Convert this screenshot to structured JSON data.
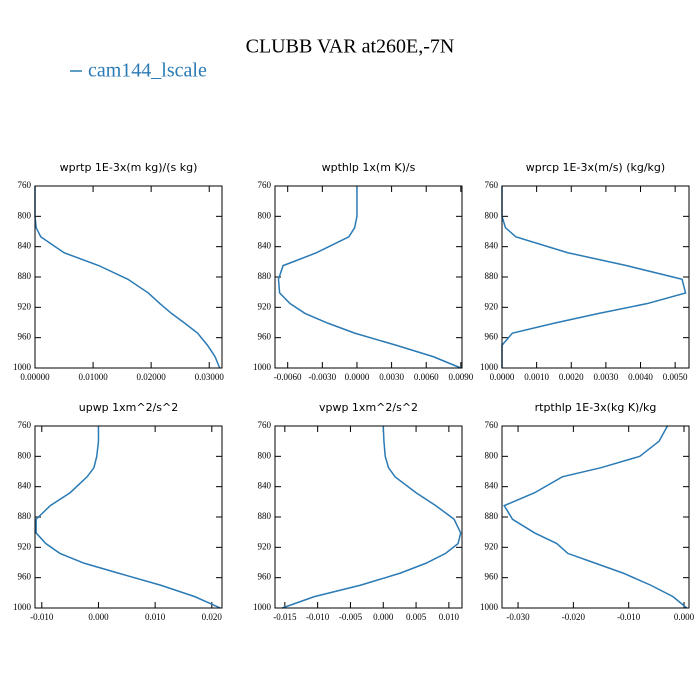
{
  "title": "CLUBB VAR at260E,-7N",
  "legend": {
    "label": "cam144_lscale",
    "color": "#2a7ab5"
  },
  "chart_data": [
    {
      "type": "line",
      "title": "wprtp  1E-3x(m kg)/(s kg)",
      "y": [
        760,
        780,
        800,
        815,
        827,
        848,
        865,
        883,
        901,
        915,
        928,
        941,
        954,
        970,
        985,
        1000
      ],
      "values": [
        0,
        0,
        0,
        0.0002,
        0.001,
        0.005,
        0.011,
        0.016,
        0.0195,
        0.0215,
        0.0235,
        0.0258,
        0.028,
        0.0297,
        0.031,
        0.0318
      ],
      "xlim": [
        0,
        0.0322
      ],
      "ylim": [
        760,
        1000
      ],
      "y_reversed": true,
      "xticks": [
        {
          "value": 0,
          "label": "0.00000"
        },
        {
          "value": 0.01,
          "label": "0.01000"
        },
        {
          "value": 0.02,
          "label": "0.02000"
        },
        {
          "value": 0.03,
          "label": "0.03000"
        }
      ],
      "yticks": [
        760,
        800,
        840,
        880,
        920,
        960,
        1000
      ]
    },
    {
      "type": "line",
      "title": "wpthlp  1x(m K)/s",
      "y": [
        760,
        780,
        800,
        815,
        827,
        848,
        865,
        883,
        901,
        915,
        928,
        941,
        954,
        970,
        985,
        1000
      ],
      "values": [
        0,
        0,
        0,
        -0.0002,
        -0.0007,
        -0.0035,
        -0.0064,
        -0.0068,
        -0.0067,
        -0.0058,
        -0.0045,
        -0.0025,
        -0.0002,
        0.0034,
        0.0066,
        0.009
      ],
      "xlim": [
        -0.0071,
        0.0091
      ],
      "ylim": [
        760,
        1000
      ],
      "y_reversed": true,
      "xticks": [
        {
          "value": -0.006,
          "label": "-0.0060"
        },
        {
          "value": -0.003,
          "label": "-0.0030"
        },
        {
          "value": 0,
          "label": "0.0000"
        },
        {
          "value": 0.003,
          "label": "0.0030"
        },
        {
          "value": 0.006,
          "label": "0.0060"
        },
        {
          "value": 0.009,
          "label": "0.0090"
        }
      ],
      "yticks": [
        760,
        800,
        840,
        880,
        920,
        960,
        1000
      ]
    },
    {
      "type": "line",
      "title": "wprcp  1E-3x(m/s) (kg/kg)",
      "y": [
        760,
        780,
        800,
        815,
        827,
        848,
        865,
        883,
        901,
        915,
        928,
        941,
        954,
        970,
        985,
        1000
      ],
      "values": [
        0,
        0,
        0,
        0.0001,
        0.0004,
        0.0019,
        0.0036,
        0.0052,
        0.0053,
        0.0042,
        0.0028,
        0.0015,
        0.0003,
        0,
        0,
        0
      ],
      "xlim": [
        0,
        0.0054
      ],
      "ylim": [
        760,
        1000
      ],
      "y_reversed": true,
      "xticks": [
        {
          "value": 0,
          "label": "0.0000"
        },
        {
          "value": 0.001,
          "label": "0.0010"
        },
        {
          "value": 0.002,
          "label": "0.0020"
        },
        {
          "value": 0.003,
          "label": "0.0030"
        },
        {
          "value": 0.004,
          "label": "0.0040"
        },
        {
          "value": 0.005,
          "label": "0.0050"
        }
      ],
      "yticks": [
        760,
        800,
        840,
        880,
        920,
        960,
        1000
      ]
    },
    {
      "type": "line",
      "title": "upwp  1xm^2/s^2",
      "y": [
        760,
        780,
        800,
        815,
        827,
        848,
        865,
        883,
        901,
        915,
        928,
        941,
        954,
        970,
        985,
        1000
      ],
      "values": [
        0,
        0,
        -0.0003,
        -0.0008,
        -0.002,
        -0.005,
        -0.0085,
        -0.011,
        -0.011,
        -0.0093,
        -0.0068,
        -0.0025,
        0.0035,
        0.011,
        0.017,
        0.0215
      ],
      "xlim": [
        -0.0112,
        0.0218
      ],
      "ylim": [
        760,
        1000
      ],
      "y_reversed": true,
      "xticks": [
        {
          "value": -0.01,
          "label": "-0.010"
        },
        {
          "value": 0,
          "label": "0.000"
        },
        {
          "value": 0.01,
          "label": "0.010"
        },
        {
          "value": 0.02,
          "label": "0.020"
        }
      ],
      "yticks": [
        760,
        800,
        840,
        880,
        920,
        960,
        1000
      ]
    },
    {
      "type": "line",
      "title": "vpwp  1xm^2/s^2",
      "y": [
        760,
        780,
        800,
        815,
        827,
        848,
        865,
        883,
        901,
        915,
        928,
        941,
        954,
        970,
        985,
        1000
      ],
      "values": [
        0,
        0.0001,
        0.0003,
        0.0008,
        0.0018,
        0.005,
        0.008,
        0.0108,
        0.0118,
        0.0114,
        0.0095,
        0.0065,
        0.0026,
        -0.0035,
        -0.0105,
        -0.0154
      ],
      "xlim": [
        -0.0165,
        0.012
      ],
      "ylim": [
        760,
        1000
      ],
      "y_reversed": true,
      "xticks": [
        {
          "value": -0.015,
          "label": "-0.015"
        },
        {
          "value": -0.01,
          "label": "-0.010"
        },
        {
          "value": -0.005,
          "label": "-0.005"
        },
        {
          "value": 0,
          "label": "0.000"
        },
        {
          "value": 0.005,
          "label": "0.005"
        },
        {
          "value": 0.01,
          "label": "0.010"
        }
      ],
      "yticks": [
        760,
        800,
        840,
        880,
        920,
        960,
        1000
      ]
    },
    {
      "type": "line",
      "title": "rtpthlp  1E-3x(kg K)/kg",
      "y": [
        760,
        780,
        800,
        815,
        827,
        848,
        865,
        883,
        901,
        915,
        928,
        941,
        954,
        970,
        985,
        1000
      ],
      "values": [
        -0.003,
        -0.0045,
        -0.008,
        -0.015,
        -0.022,
        -0.027,
        -0.0325,
        -0.031,
        -0.027,
        -0.023,
        -0.021,
        -0.016,
        -0.011,
        -0.006,
        -0.002,
        0.0005
      ],
      "xlim": [
        -0.0329,
        0.0009
      ],
      "ylim": [
        760,
        1000
      ],
      "y_reversed": true,
      "xticks": [
        {
          "value": -0.03,
          "label": "-0.030"
        },
        {
          "value": -0.02,
          "label": "-0.020"
        },
        {
          "value": -0.01,
          "label": "-0.010"
        },
        {
          "value": 0,
          "label": "0.000"
        }
      ],
      "yticks": [
        760,
        800,
        840,
        880,
        920,
        960,
        1000
      ]
    }
  ]
}
